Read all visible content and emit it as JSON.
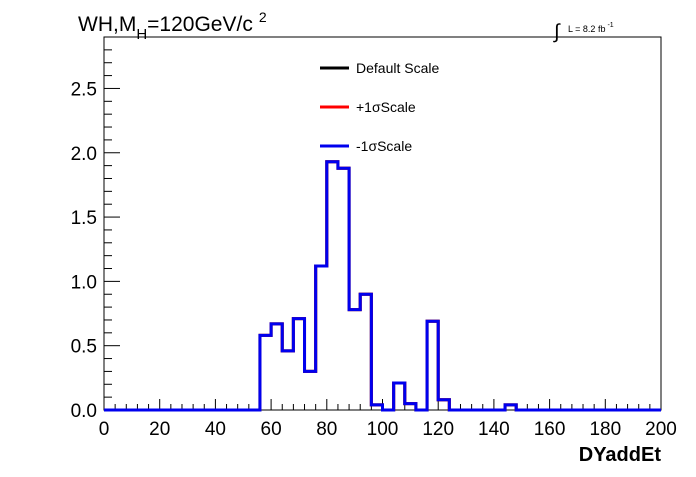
{
  "chart_data": {
    "type": "line",
    "title": "WH,M",
    "title_sub": "H",
    "title_rest": "=120GeV/c",
    "title_sup": "2",
    "lumi": {
      "integral": "∫",
      "text": "L = 8.2 fb",
      "sup": "-1"
    },
    "xlabel": "DYaddEt",
    "ylabel": "",
    "xlim": [
      0,
      200
    ],
    "ylim": [
      0,
      2.9
    ],
    "x_ticks": [
      "0",
      "20",
      "40",
      "60",
      "80",
      "100",
      "120",
      "140",
      "160",
      "180",
      "200"
    ],
    "y_ticks": [
      "0.0",
      "0.5",
      "1.0",
      "1.5",
      "2.0",
      "2.5"
    ],
    "legend_position": "top-center",
    "bin_width": 4,
    "series": [
      {
        "name": "Default Scale",
        "color": "#000000",
        "values": [
          0,
          0,
          0,
          0,
          0,
          0,
          0,
          0,
          0,
          0,
          0,
          0,
          0,
          0,
          0.58,
          0.67,
          0.46,
          0.71,
          0.3,
          1.12,
          1.93,
          1.88,
          0.78,
          0.9,
          0.04,
          0.0,
          0.21,
          0.05,
          0.0,
          0.69,
          0.08,
          0.0,
          0.0,
          0.0,
          0.0,
          0.0,
          0.04,
          0.0,
          0.0,
          0.0,
          0.0,
          0.0,
          0.0,
          0.0,
          0.0,
          0.0,
          0.0,
          0.0,
          0.0,
          0.0
        ]
      },
      {
        "name": "+1σScale",
        "color": "#ff0000",
        "values": [
          0,
          0,
          0,
          0,
          0,
          0,
          0,
          0,
          0,
          0,
          0,
          0,
          0,
          0,
          0.58,
          0.67,
          0.46,
          0.71,
          0.3,
          1.12,
          1.93,
          1.88,
          0.78,
          0.9,
          0.04,
          0.0,
          0.21,
          0.05,
          0.0,
          0.69,
          0.08,
          0.0,
          0.0,
          0.0,
          0.0,
          0.0,
          0.04,
          0.0,
          0.0,
          0.0,
          0.0,
          0.0,
          0.0,
          0.0,
          0.0,
          0.0,
          0.0,
          0.0,
          0.0,
          0.0
        ]
      },
      {
        "name": "-1σScale",
        "color": "#0000ee",
        "values": [
          0,
          0,
          0,
          0,
          0,
          0,
          0,
          0,
          0,
          0,
          0,
          0,
          0,
          0,
          0.58,
          0.67,
          0.46,
          0.71,
          0.3,
          1.12,
          1.93,
          1.88,
          0.78,
          0.9,
          0.04,
          0.0,
          0.21,
          0.05,
          0.0,
          0.69,
          0.08,
          0.0,
          0.0,
          0.0,
          0.0,
          0.0,
          0.04,
          0.0,
          0.0,
          0.0,
          0.0,
          0.0,
          0.0,
          0.0,
          0.0,
          0.0,
          0.0,
          0.0,
          0.0,
          0.0
        ]
      }
    ]
  }
}
